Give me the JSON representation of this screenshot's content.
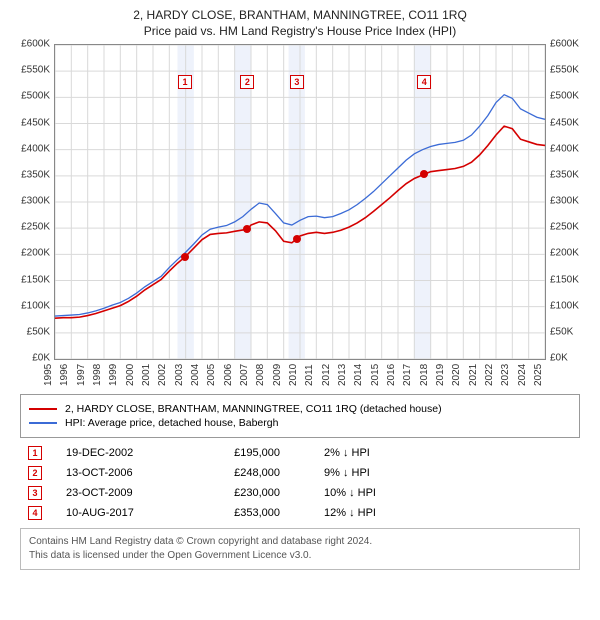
{
  "title_line1": "2, HARDY CLOSE, BRANTHAM, MANNINGTREE, CO11 1RQ",
  "title_line2": "Price paid vs. HM Land Registry's House Price Index (HPI)",
  "chart": {
    "type": "line",
    "background_color": "#ffffff",
    "border_color": "#888888",
    "grid_color": "#d9d9d9",
    "shade_color": "#eef2fb",
    "x_min": 1995,
    "x_max": 2025,
    "y_min": 0,
    "y_max": 600000,
    "y_tick_step": 50000,
    "y_tick_prefix": "£",
    "y_tick_suffix": "K",
    "x_ticks": [
      1995,
      1996,
      1997,
      1998,
      1999,
      2000,
      2001,
      2002,
      2003,
      2004,
      2005,
      2006,
      2007,
      2008,
      2009,
      2010,
      2011,
      2012,
      2013,
      2014,
      2015,
      2016,
      2017,
      2018,
      2019,
      2020,
      2021,
      2022,
      2023,
      2024,
      2025
    ],
    "series": [
      {
        "name": "price_paid",
        "label": "2, HARDY CLOSE, BRANTHAM, MANNINGTREE, CO11 1RQ (detached house)",
        "color": "#d40000",
        "line_width": 1.6,
        "data": [
          [
            1995.0,
            78000
          ],
          [
            1995.5,
            79000
          ],
          [
            1996.0,
            79000
          ],
          [
            1996.5,
            80000
          ],
          [
            1997.0,
            83000
          ],
          [
            1997.5,
            87000
          ],
          [
            1998.0,
            92000
          ],
          [
            1998.5,
            97000
          ],
          [
            1999.0,
            102000
          ],
          [
            1999.5,
            110000
          ],
          [
            2000.0,
            120000
          ],
          [
            2000.5,
            132000
          ],
          [
            2001.0,
            142000
          ],
          [
            2001.5,
            152000
          ],
          [
            2002.0,
            168000
          ],
          [
            2002.5,
            183000
          ],
          [
            2002.96,
            195000
          ],
          [
            2003.5,
            212000
          ],
          [
            2004.0,
            228000
          ],
          [
            2004.5,
            238000
          ],
          [
            2005.0,
            240000
          ],
          [
            2005.5,
            241000
          ],
          [
            2006.0,
            244000
          ],
          [
            2006.78,
            248000
          ],
          [
            2007.0,
            256000
          ],
          [
            2007.5,
            262000
          ],
          [
            2008.0,
            260000
          ],
          [
            2008.5,
            245000
          ],
          [
            2009.0,
            225000
          ],
          [
            2009.5,
            222000
          ],
          [
            2009.81,
            230000
          ],
          [
            2010.0,
            235000
          ],
          [
            2010.5,
            240000
          ],
          [
            2011.0,
            242000
          ],
          [
            2011.5,
            240000
          ],
          [
            2012.0,
            242000
          ],
          [
            2012.5,
            246000
          ],
          [
            2013.0,
            252000
          ],
          [
            2013.5,
            260000
          ],
          [
            2014.0,
            270000
          ],
          [
            2014.5,
            282000
          ],
          [
            2015.0,
            295000
          ],
          [
            2015.5,
            308000
          ],
          [
            2016.0,
            322000
          ],
          [
            2016.5,
            335000
          ],
          [
            2017.0,
            345000
          ],
          [
            2017.61,
            353000
          ],
          [
            2018.0,
            358000
          ],
          [
            2018.5,
            360000
          ],
          [
            2019.0,
            362000
          ],
          [
            2019.5,
            364000
          ],
          [
            2020.0,
            368000
          ],
          [
            2020.5,
            376000
          ],
          [
            2021.0,
            390000
          ],
          [
            2021.5,
            408000
          ],
          [
            2022.0,
            428000
          ],
          [
            2022.5,
            445000
          ],
          [
            2023.0,
            440000
          ],
          [
            2023.5,
            420000
          ],
          [
            2024.0,
            415000
          ],
          [
            2024.5,
            410000
          ],
          [
            2025.0,
            408000
          ]
        ]
      },
      {
        "name": "hpi",
        "label": "HPI: Average price, detached house, Babergh",
        "color": "#3b6bd6",
        "line_width": 1.3,
        "data": [
          [
            1995.0,
            82000
          ],
          [
            1995.5,
            83000
          ],
          [
            1996.0,
            84000
          ],
          [
            1996.5,
            85000
          ],
          [
            1997.0,
            88000
          ],
          [
            1997.5,
            92000
          ],
          [
            1998.0,
            97000
          ],
          [
            1998.5,
            103000
          ],
          [
            1999.0,
            108000
          ],
          [
            1999.5,
            116000
          ],
          [
            2000.0,
            126000
          ],
          [
            2000.5,
            138000
          ],
          [
            2001.0,
            148000
          ],
          [
            2001.5,
            158000
          ],
          [
            2002.0,
            175000
          ],
          [
            2002.5,
            190000
          ],
          [
            2003.0,
            204000
          ],
          [
            2003.5,
            220000
          ],
          [
            2004.0,
            237000
          ],
          [
            2004.5,
            248000
          ],
          [
            2005.0,
            252000
          ],
          [
            2005.5,
            255000
          ],
          [
            2006.0,
            262000
          ],
          [
            2006.5,
            272000
          ],
          [
            2007.0,
            286000
          ],
          [
            2007.5,
            298000
          ],
          [
            2008.0,
            295000
          ],
          [
            2008.5,
            278000
          ],
          [
            2009.0,
            260000
          ],
          [
            2009.5,
            256000
          ],
          [
            2010.0,
            265000
          ],
          [
            2010.5,
            272000
          ],
          [
            2011.0,
            273000
          ],
          [
            2011.5,
            270000
          ],
          [
            2012.0,
            272000
          ],
          [
            2012.5,
            278000
          ],
          [
            2013.0,
            285000
          ],
          [
            2013.5,
            295000
          ],
          [
            2014.0,
            307000
          ],
          [
            2014.5,
            320000
          ],
          [
            2015.0,
            335000
          ],
          [
            2015.5,
            350000
          ],
          [
            2016.0,
            365000
          ],
          [
            2016.5,
            380000
          ],
          [
            2017.0,
            392000
          ],
          [
            2017.5,
            400000
          ],
          [
            2018.0,
            406000
          ],
          [
            2018.5,
            410000
          ],
          [
            2019.0,
            412000
          ],
          [
            2019.5,
            414000
          ],
          [
            2020.0,
            418000
          ],
          [
            2020.5,
            428000
          ],
          [
            2021.0,
            445000
          ],
          [
            2021.5,
            465000
          ],
          [
            2022.0,
            490000
          ],
          [
            2022.5,
            505000
          ],
          [
            2023.0,
            498000
          ],
          [
            2023.5,
            478000
          ],
          [
            2024.0,
            470000
          ],
          [
            2024.5,
            462000
          ],
          [
            2025.0,
            458000
          ]
        ]
      }
    ],
    "shaded_years": [
      [
        2002.5,
        2003.5
      ],
      [
        2006.0,
        2007.0
      ],
      [
        2009.3,
        2010.3
      ],
      [
        2017.0,
        2018.0
      ]
    ],
    "sale_markers": [
      {
        "n": "1",
        "x": 2002.96,
        "y": 195000,
        "color": "#d40000",
        "label_y": 530000
      },
      {
        "n": "2",
        "x": 2006.78,
        "y": 248000,
        "color": "#d40000",
        "label_y": 530000
      },
      {
        "n": "3",
        "x": 2009.81,
        "y": 230000,
        "color": "#d40000",
        "label_y": 530000
      },
      {
        "n": "4",
        "x": 2017.61,
        "y": 353000,
        "color": "#d40000",
        "label_y": 530000
      }
    ]
  },
  "legend": {
    "items": [
      {
        "color": "#d40000",
        "label": "2, HARDY CLOSE, BRANTHAM, MANNINGTREE, CO11 1RQ (detached house)"
      },
      {
        "color": "#3b6bd6",
        "label": "HPI: Average price, detached house, Babergh"
      }
    ]
  },
  "sales": [
    {
      "n": "1",
      "color": "#d40000",
      "date": "19-DEC-2002",
      "price": "£195,000",
      "diff": "2% ↓ HPI"
    },
    {
      "n": "2",
      "color": "#d40000",
      "date": "13-OCT-2006",
      "price": "£248,000",
      "diff": "9% ↓ HPI"
    },
    {
      "n": "3",
      "color": "#d40000",
      "date": "23-OCT-2009",
      "price": "£230,000",
      "diff": "10% ↓ HPI"
    },
    {
      "n": "4",
      "color": "#d40000",
      "date": "10-AUG-2017",
      "price": "£353,000",
      "diff": "12% ↓ HPI"
    }
  ],
  "footer_line1": "Contains HM Land Registry data © Crown copyright and database right 2024.",
  "footer_line2": "This data is licensed under the Open Government Licence v3.0."
}
